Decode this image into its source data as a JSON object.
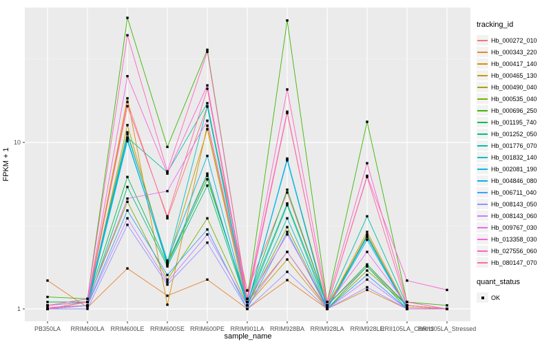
{
  "figure": {
    "panel_bg": "#EBEBEB",
    "grid_major_color": "#FFFFFF",
    "grid_minor_color": "#F5F5F5",
    "axis_text_color": "#4D4D4D",
    "tick_mark_color": "#333333",
    "marker_color": "#000000"
  },
  "chart_data": {
    "type": "line",
    "title": "",
    "xlabel": "sample_name",
    "ylabel": "FPKM + 1",
    "y_scale": "log10",
    "y_ticks": [
      "1",
      "10"
    ],
    "y_tick_values": [
      1,
      10
    ],
    "y_minor_values": [
      3.1623,
      31.623
    ],
    "ylim": [
      0.84,
      65
    ],
    "grid": true,
    "point_marker": "black-square",
    "categories": [
      "PB350LA",
      "RRIM600LA",
      "RRIM600LE",
      "RRIM600SE",
      "RRIM600PE",
      "RRIM901LA",
      "RRIM928BA",
      "RRIM928LA",
      "RRIM928LE",
      "RRII105LA_Control",
      "RRII105LA_Stressed"
    ],
    "legend": {
      "position": "right",
      "series_title": "tracking_id",
      "quant_title": "quant_status",
      "quant_label": "OK"
    },
    "series": [
      {
        "name": "Hb_000272_010",
        "color": "#F8766D",
        "values": [
          1.02,
          1.05,
          17.5,
          3.5,
          16.5,
          1.29,
          5.0,
          1.05,
          1.8,
          1.05,
          1.0
        ]
      },
      {
        "name": "Hb_000343_220",
        "color": "#EA8331",
        "values": [
          1.48,
          1.02,
          1.75,
          1.2,
          1.5,
          1.0,
          1.49,
          1.0,
          1.3,
          1.0,
          1.0
        ]
      },
      {
        "name": "Hb_000417_140",
        "color": "#D89000",
        "values": [
          1.0,
          1.1,
          18.4,
          1.06,
          12.6,
          1.1,
          2.2,
          1.02,
          2.9,
          1.02,
          1.0
        ]
      },
      {
        "name": "Hb_000465_130",
        "color": "#C09B00",
        "values": [
          1.0,
          1.05,
          12.7,
          1.85,
          12.0,
          1.05,
          1.98,
          1.0,
          2.8,
          1.0,
          1.0
        ]
      },
      {
        "name": "Hb_000490_040",
        "color": "#A3A500",
        "values": [
          1.0,
          1.1,
          11.5,
          1.9,
          6.3,
          1.05,
          7.9,
          1.05,
          2.7,
          1.0,
          1.0
        ]
      },
      {
        "name": "Hb_000535_040",
        "color": "#7CAE00",
        "values": [
          1.05,
          1.1,
          4.4,
          1.5,
          3.5,
          1.05,
          3.1,
          1.0,
          1.7,
          1.05,
          1.0
        ]
      },
      {
        "name": "Hb_000696_250",
        "color": "#39B600",
        "values": [
          1.18,
          1.15,
          56.0,
          9.4,
          36.0,
          1.15,
          54.0,
          1.1,
          13.3,
          1.1,
          1.05
        ]
      },
      {
        "name": "Hb_001195_740",
        "color": "#00BB4E",
        "values": [
          1.1,
          1.1,
          6.2,
          1.85,
          6.0,
          1.1,
          5.2,
          1.05,
          1.85,
          1.05,
          1.0
        ]
      },
      {
        "name": "Hb_001252_050",
        "color": "#00BF7D",
        "values": [
          1.0,
          1.05,
          5.4,
          1.8,
          5.5,
          1.05,
          4.2,
          1.0,
          1.8,
          1.0,
          1.0
        ]
      },
      {
        "name": "Hb_001776_070",
        "color": "#00C1A3",
        "values": [
          1.05,
          1.1,
          10.7,
          6.6,
          17.2,
          1.1,
          4.3,
          1.05,
          3.6,
          1.05,
          1.0
        ]
      },
      {
        "name": "Hb_001832_140",
        "color": "#00BFC4",
        "values": [
          1.0,
          1.05,
          10.2,
          1.9,
          16.4,
          1.05,
          3.5,
          1.0,
          2.75,
          1.0,
          1.0
        ]
      },
      {
        "name": "Hb_002081_190",
        "color": "#00BAE0",
        "values": [
          1.0,
          1.1,
          11.2,
          1.95,
          8.3,
          1.05,
          8.0,
          1.0,
          2.7,
          1.0,
          1.0
        ]
      },
      {
        "name": "Hb_004846_080",
        "color": "#00B0F6",
        "values": [
          1.0,
          1.05,
          10.5,
          1.85,
          6.5,
          1.05,
          7.8,
          1.0,
          2.6,
          1.0,
          1.0
        ]
      },
      {
        "name": "Hb_006711_040",
        "color": "#35A2FF",
        "values": [
          1.0,
          1.05,
          3.9,
          1.6,
          3.0,
          1.0,
          2.9,
          1.0,
          1.6,
          1.0,
          1.0
        ]
      },
      {
        "name": "Hb_008143_050",
        "color": "#9590FF",
        "values": [
          1.0,
          1.0,
          3.2,
          1.4,
          2.5,
          1.0,
          1.67,
          1.0,
          1.35,
          1.0,
          1.0
        ]
      },
      {
        "name": "Hb_008143_060",
        "color": "#C77CFF",
        "values": [
          1.0,
          1.05,
          3.5,
          1.45,
          2.8,
          1.05,
          2.2,
          1.0,
          1.5,
          1.0,
          1.0
        ]
      },
      {
        "name": "Hb_009767_030",
        "color": "#E76BF3",
        "values": [
          1.05,
          1.1,
          4.6,
          5.1,
          13.5,
          1.1,
          2.8,
          1.05,
          2.2,
          1.05,
          1.0
        ]
      },
      {
        "name": "Hb_013358_030",
        "color": "#FA62DB",
        "values": [
          1.0,
          1.1,
          25.0,
          6.5,
          22.0,
          1.15,
          15.3,
          1.05,
          6.3,
          1.48,
          1.3
        ]
      },
      {
        "name": "Hb_027556_060",
        "color": "#FF62BC",
        "values": [
          1.05,
          1.15,
          44.0,
          6.7,
          35.0,
          1.15,
          20.8,
          1.1,
          7.5,
          1.1,
          1.0
        ]
      },
      {
        "name": "Hb_080147_070",
        "color": "#FF6A98",
        "values": [
          1.0,
          1.1,
          16.5,
          3.6,
          21.0,
          1.1,
          15.0,
          1.05,
          6.2,
          1.05,
          1.0
        ]
      }
    ]
  }
}
